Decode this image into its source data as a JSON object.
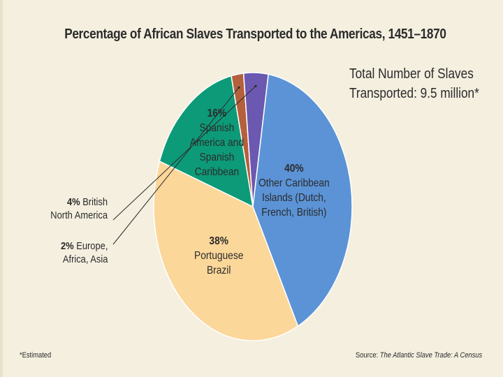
{
  "chart_data": {
    "type": "pie",
    "title": "Percentage of African Slaves Transported to the Americas, 1451–1870",
    "subtitle_lines": [
      "Total Number of Slaves",
      "Transported: 9.5 million*"
    ],
    "slices": [
      {
        "pct_label": "38%",
        "value": 38,
        "label_lines": [
          "Portuguese",
          "Brazil"
        ],
        "color": "#fcd79a"
      },
      {
        "pct_label": "16%",
        "value": 16,
        "label_lines": [
          "Spanish",
          "America and",
          "Spanish",
          "Caribbean"
        ],
        "color": "#0d9a78"
      },
      {
        "pct_label": "2%",
        "value": 2,
        "label_lines": [
          "Europe,",
          "Africa, Asia"
        ],
        "color": "#b5603c"
      },
      {
        "pct_label": "4%",
        "value": 4,
        "label_lines": [
          "British",
          "North America"
        ],
        "color": "#6b58b0"
      },
      {
        "pct_label": "40%",
        "value": 40,
        "label_lines": [
          "Other Caribbean",
          "Islands (Dutch,",
          "French, British)"
        ],
        "color": "#5b93d6"
      }
    ],
    "footnote": "*Estimated",
    "source_prefix": "Source: ",
    "source_title": "The Atlantic Slave Trade: A Census"
  }
}
